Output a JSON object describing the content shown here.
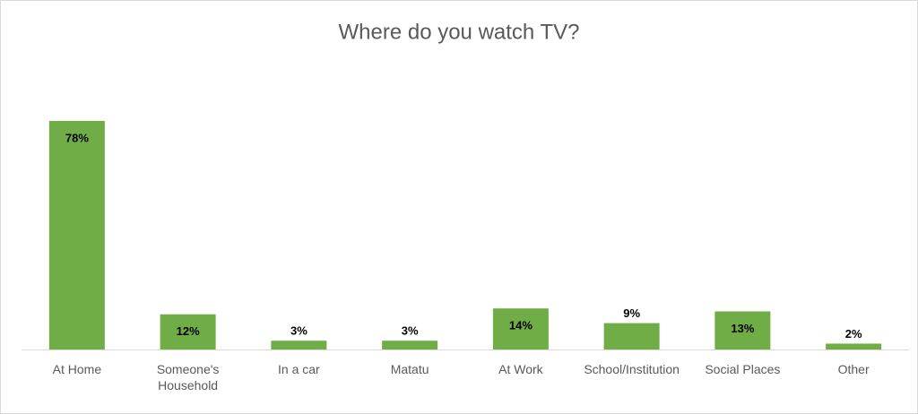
{
  "chart_data": {
    "type": "bar",
    "title": "Where do you watch TV?",
    "categories": [
      "At Home",
      "Someone's Household",
      "In a car",
      "Matatu",
      "At Work",
      "School/Institution",
      "Social Places",
      "Other"
    ],
    "values": [
      78,
      12,
      3,
      3,
      14,
      9,
      13,
      2
    ],
    "value_labels": [
      "78%",
      "12%",
      "3%",
      "3%",
      "14%",
      "9%",
      "13%",
      "2%"
    ],
    "color": "#70ad47"
  }
}
